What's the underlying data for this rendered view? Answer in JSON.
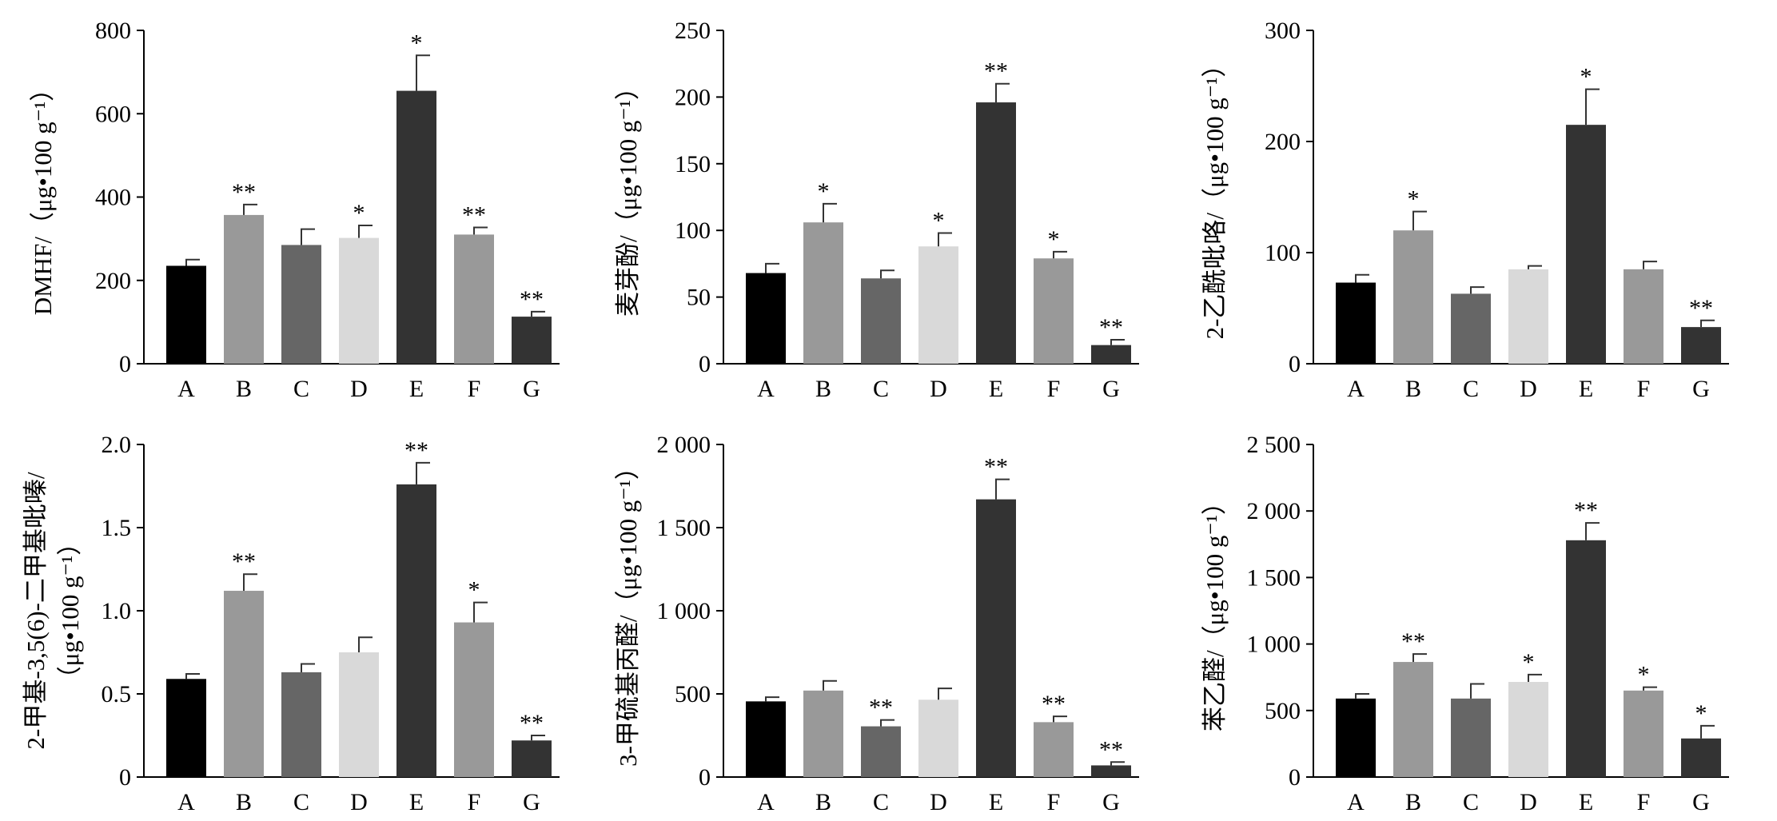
{
  "colors": {
    "A": "#000000",
    "B": "#999999",
    "C": "#666666",
    "D": "#d9d9d9",
    "E": "#333333",
    "F": "#999999",
    "G": "#333333"
  },
  "chart_data": [
    {
      "type": "bar",
      "title": "",
      "xlabel": "",
      "ylabel": "DMHF/（μg•100 g⁻¹）",
      "categories": [
        "A",
        "B",
        "C",
        "D",
        "E",
        "F",
        "G"
      ],
      "values": [
        235,
        357,
        285,
        302,
        655,
        310,
        113
      ],
      "errors": [
        15,
        25,
        38,
        30,
        85,
        17,
        12
      ],
      "significance": [
        "",
        "**",
        "",
        "*",
        "*",
        "**",
        "**"
      ],
      "ylim": [
        0,
        800
      ],
      "yticks": [
        0,
        200,
        400,
        600,
        800
      ],
      "ytick_labels": [
        "0",
        "200",
        "400",
        "600",
        "800"
      ]
    },
    {
      "type": "bar",
      "title": "",
      "xlabel": "",
      "ylabel": "麦芽酚/（μg•100 g⁻¹）",
      "categories": [
        "A",
        "B",
        "C",
        "D",
        "E",
        "F",
        "G"
      ],
      "values": [
        68,
        106,
        64,
        88,
        196,
        79,
        14
      ],
      "errors": [
        7,
        14,
        6,
        10,
        14,
        5,
        4
      ],
      "significance": [
        "",
        "*",
        "",
        "*",
        "**",
        "*",
        "**"
      ],
      "ylim": [
        0,
        250
      ],
      "yticks": [
        0,
        50,
        100,
        150,
        200,
        250
      ],
      "ytick_labels": [
        "0",
        "50",
        "100",
        "150",
        "200",
        "250"
      ]
    },
    {
      "type": "bar",
      "title": "",
      "xlabel": "",
      "ylabel": "2-乙酰吡咯/（μg•100 g⁻¹）",
      "categories": [
        "A",
        "B",
        "C",
        "D",
        "E",
        "F",
        "G"
      ],
      "values": [
        73,
        120,
        63,
        85,
        215,
        85,
        33
      ],
      "errors": [
        7,
        17,
        6,
        3,
        32,
        7,
        6
      ],
      "significance": [
        "",
        "*",
        "",
        "",
        "*",
        "",
        "**"
      ],
      "ylim": [
        0,
        300
      ],
      "yticks": [
        0,
        100,
        200,
        300
      ],
      "ytick_labels": [
        "0",
        "100",
        "200",
        "300"
      ]
    },
    {
      "type": "bar",
      "title": "",
      "xlabel": "",
      "ylabel_lines": [
        "2-甲基-3,5(6)-二甲基吡嗪/",
        "（μg•100 g⁻¹）"
      ],
      "categories": [
        "A",
        "B",
        "C",
        "D",
        "E",
        "F",
        "G"
      ],
      "values": [
        0.59,
        1.12,
        0.63,
        0.75,
        1.76,
        0.93,
        0.22
      ],
      "errors": [
        0.03,
        0.1,
        0.05,
        0.09,
        0.13,
        0.12,
        0.03
      ],
      "significance": [
        "",
        "**",
        "",
        "",
        "**",
        "*",
        "**"
      ],
      "ylim": [
        0,
        2.0
      ],
      "yticks": [
        0,
        0.5,
        1.0,
        1.5,
        2.0
      ],
      "ytick_labels": [
        "0",
        "0.5",
        "1.0",
        "1.5",
        "2.0"
      ]
    },
    {
      "type": "bar",
      "title": "",
      "xlabel": "",
      "ylabel": "3-甲硫基丙醛/（μg•100 g⁻¹）",
      "categories": [
        "A",
        "B",
        "C",
        "D",
        "E",
        "F",
        "G"
      ],
      "values": [
        455,
        520,
        305,
        465,
        1670,
        330,
        70
      ],
      "errors": [
        25,
        58,
        38,
        68,
        120,
        35,
        20
      ],
      "significance": [
        "",
        "",
        "**",
        "",
        "**",
        "**",
        "**"
      ],
      "ylim": [
        0,
        2000
      ],
      "yticks": [
        0,
        500,
        1000,
        1500,
        2000
      ],
      "ytick_labels": [
        "0",
        "500",
        "1 000",
        "1 500",
        "2 000"
      ]
    },
    {
      "type": "bar",
      "title": "",
      "xlabel": "",
      "ylabel": "苯乙醛/（μg•100 g⁻¹）",
      "categories": [
        "A",
        "B",
        "C",
        "D",
        "E",
        "F",
        "G"
      ],
      "values": [
        590,
        865,
        590,
        715,
        1780,
        650,
        290
      ],
      "errors": [
        35,
        60,
        110,
        55,
        130,
        25,
        95
      ],
      "significance": [
        "",
        "**",
        "",
        "*",
        "**",
        "*",
        "*"
      ],
      "ylim": [
        0,
        2500
      ],
      "yticks": [
        0,
        500,
        1000,
        1500,
        2000,
        2500
      ],
      "ytick_labels": [
        "0",
        "500",
        "1 000",
        "1 500",
        "2 000",
        "2 500"
      ]
    }
  ]
}
